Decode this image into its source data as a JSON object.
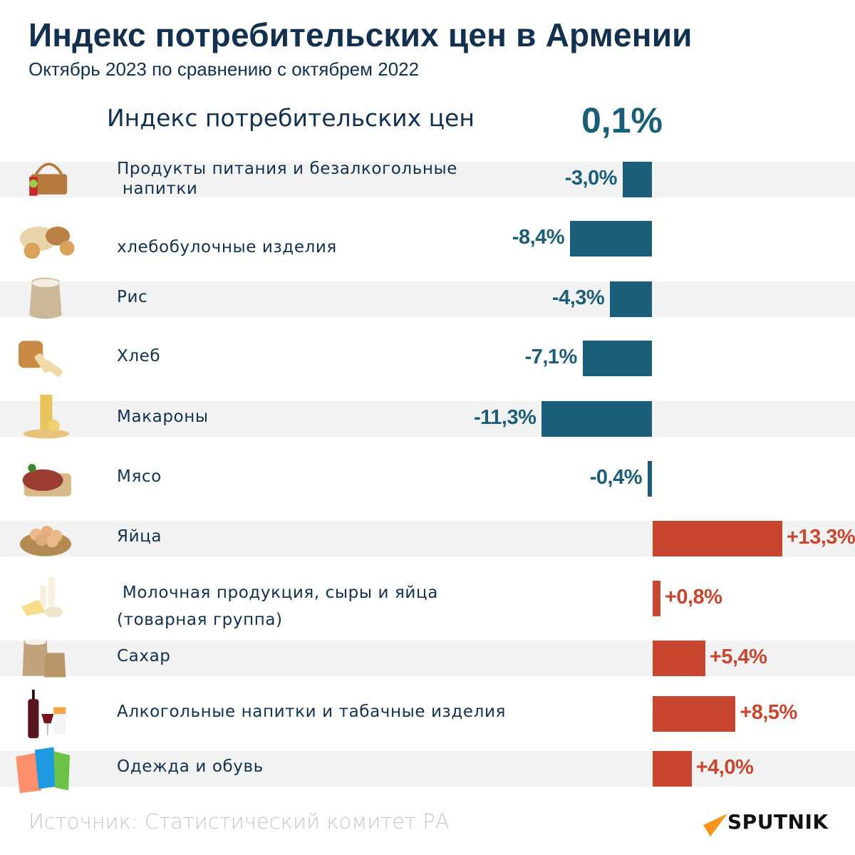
{
  "header": {
    "title": "Индекс потребительских цен в Армении",
    "subtitle": "Октябрь 2023 по сравнению с октябрем 2022"
  },
  "summary": {
    "label": "Индекс потребительских цен",
    "value": "0,1%"
  },
  "colors": {
    "negative": "#1a5e7a",
    "positive": "#c8452f",
    "text": "#12304f",
    "band": "#f2f2f2"
  },
  "chart_data": {
    "type": "bar",
    "orientation": "horizontal",
    "title": "Индекс потребительских цен в Армении",
    "subtitle": "Октябрь 2023 по сравнению с октябрем 2022",
    "unit": "%",
    "total": 0.1,
    "categories": [
      "Продукты питания и безалкогольные напитки",
      "хлебобулочные изделия",
      "Рис",
      "Хлеб",
      "Макароны",
      "Мясо",
      "Яйца",
      "Молочная продукция, сыры и яйца (товарная группа)",
      "Сахар",
      "Алкогольные напитки и табачные изделия",
      "Одежда и обувь"
    ],
    "values": [
      -3.0,
      -8.4,
      -4.3,
      -7.1,
      -11.3,
      -0.4,
      13.3,
      0.8,
      5.4,
      8.5,
      4.0
    ],
    "data_labels": [
      "-3,0%",
      "-8,4%",
      "-4,3%",
      "-7,1%",
      "-11,3%",
      "-0,4%",
      "+13,3%",
      "+0,8%",
      "+5,4%",
      "+8,5%",
      "+4,0%"
    ],
    "xlim": [
      -13.3,
      13.3
    ],
    "grid": false,
    "legend": "none"
  },
  "rows": [
    {
      "label_lines": [
        "Продукты питания и безалкогольные",
        " напитки"
      ],
      "icon": "picnic-basket-icon"
    },
    {
      "label_lines": [
        "хлебобулочные изделия"
      ],
      "icon": "bakery-icon"
    },
    {
      "label_lines": [
        "Рис"
      ],
      "icon": "rice-sack-icon"
    },
    {
      "label_lines": [
        "Хлеб"
      ],
      "icon": "bread-loaf-icon"
    },
    {
      "label_lines": [
        "Макароны"
      ],
      "icon": "pasta-icon"
    },
    {
      "label_lines": [
        "Мясо"
      ],
      "icon": "meat-icon"
    },
    {
      "label_lines": [
        "Яйца"
      ],
      "icon": "egg-basket-icon"
    },
    {
      "label_lines": [
        " Молочная продукция, сыры и яйца",
        "(товарная группа)"
      ],
      "icon": "dairy-icon"
    },
    {
      "label_lines": [
        "Сахар"
      ],
      "icon": "sugar-sacks-icon"
    },
    {
      "label_lines": [
        "Алкогольные напитки и табачные изделия"
      ],
      "icon": "wine-cigarettes-icon"
    },
    {
      "label_lines": [
        "Одежда и обувь"
      ],
      "icon": "shirts-icon"
    }
  ],
  "footer": {
    "source": "Источник: Статистический комитет РА",
    "logo_text": "SPUTNIK"
  }
}
